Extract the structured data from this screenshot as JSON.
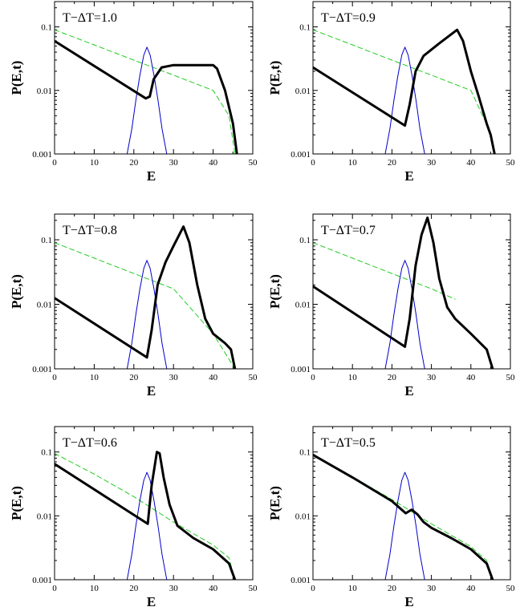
{
  "chart_data": [
    {
      "type": "line",
      "title": "T−ΔT=1.0",
      "xlabel": "E",
      "ylabel": "P(E,t)",
      "xlim": [
        0,
        50
      ],
      "ylim": [
        0.001,
        0.25
      ],
      "yscale": "log",
      "xticks": [
        "0",
        "10",
        "20",
        "30",
        "40",
        "50"
      ],
      "yticks": [
        "0.001",
        "0.01",
        "0.1"
      ],
      "series": [
        {
          "role": "bold-black",
          "color": "#000000",
          "x": [
            0,
            23,
            24,
            25,
            27,
            30,
            40,
            41,
            43,
            45,
            46
          ],
          "y": [
            0.06,
            0.0075,
            0.008,
            0.015,
            0.023,
            0.025,
            0.025,
            0.022,
            0.01,
            0.003,
            0.001
          ]
        },
        {
          "role": "blue-gaussian",
          "color": "#0000cc",
          "x": [
            18.3,
            19.5,
            20.5,
            21.5,
            22.5,
            23.3,
            24.1,
            25.1,
            26.1,
            27.1,
            28.3
          ],
          "y": [
            0.001,
            0.0025,
            0.007,
            0.017,
            0.036,
            0.048,
            0.036,
            0.017,
            0.007,
            0.0025,
            0.001
          ]
        },
        {
          "role": "green-dashed",
          "color": "#22cc22",
          "dashed": true,
          "x": [
            0,
            10,
            20,
            30,
            40,
            44,
            45.5
          ],
          "y": [
            0.09,
            0.052,
            0.03,
            0.0174,
            0.01,
            0.004,
            0.001
          ]
        }
      ]
    },
    {
      "type": "line",
      "title": "T−ΔT=0.9",
      "xlabel": "E",
      "ylabel": "P(E,t)",
      "xlim": [
        0,
        50
      ],
      "ylim": [
        0.001,
        0.25
      ],
      "yscale": "log",
      "xticks": [
        "0",
        "10",
        "20",
        "30",
        "40",
        "50"
      ],
      "yticks": [
        "0.001",
        "0.01",
        "0.1"
      ],
      "series": [
        {
          "role": "bold-black",
          "color": "#000000",
          "x": [
            0,
            23.3,
            24.5,
            26,
            28,
            32,
            36.5,
            38,
            40,
            42,
            44,
            45,
            46
          ],
          "y": [
            0.023,
            0.0028,
            0.006,
            0.02,
            0.035,
            0.055,
            0.09,
            0.06,
            0.02,
            0.008,
            0.003,
            0.002,
            0.001
          ]
        },
        {
          "role": "blue-gaussian",
          "color": "#0000cc",
          "x": [
            18.3,
            19.5,
            20.5,
            21.5,
            22.5,
            23.3,
            24.1,
            25.1,
            26.1,
            27.1,
            28.3
          ],
          "y": [
            0.001,
            0.0025,
            0.007,
            0.017,
            0.036,
            0.048,
            0.036,
            0.017,
            0.007,
            0.0025,
            0.001
          ]
        },
        {
          "role": "green-dashed",
          "color": "#22cc22",
          "dashed": true,
          "x": [
            0,
            10,
            20,
            30,
            40,
            44.5
          ],
          "y": [
            0.09,
            0.052,
            0.03,
            0.0174,
            0.01,
            0.0025
          ]
        }
      ]
    },
    {
      "type": "line",
      "title": "T−ΔT=0.8",
      "xlabel": "E",
      "ylabel": "P(E,t)",
      "xlim": [
        0,
        50
      ],
      "ylim": [
        0.001,
        0.25
      ],
      "yscale": "log",
      "xticks": [
        "0",
        "10",
        "20",
        "30",
        "40",
        "50"
      ],
      "yticks": [
        "0.001",
        "0.01",
        "0.1"
      ],
      "series": [
        {
          "role": "bold-black",
          "color": "#000000",
          "x": [
            0,
            23.3,
            24.5,
            26,
            28,
            30,
            32.5,
            34,
            36,
            38,
            40,
            43,
            44.5,
            45.5
          ],
          "y": [
            0.0125,
            0.0015,
            0.004,
            0.02,
            0.045,
            0.08,
            0.16,
            0.09,
            0.02,
            0.006,
            0.0035,
            0.0025,
            0.002,
            0.001
          ]
        },
        {
          "role": "blue-gaussian",
          "color": "#0000cc",
          "x": [
            18.3,
            19.5,
            20.5,
            21.5,
            22.5,
            23.3,
            24.1,
            25.1,
            26.1,
            27.1,
            28.3
          ],
          "y": [
            0.001,
            0.0025,
            0.007,
            0.017,
            0.036,
            0.048,
            0.036,
            0.017,
            0.007,
            0.0025,
            0.001
          ]
        },
        {
          "role": "green-dashed",
          "color": "#22cc22",
          "dashed": true,
          "x": [
            0,
            10,
            20,
            30,
            40,
            45.5
          ],
          "y": [
            0.09,
            0.052,
            0.03,
            0.0174,
            0.0035,
            0.001
          ]
        }
      ]
    },
    {
      "type": "line",
      "title": "T−ΔT=0.7",
      "xlabel": "E",
      "ylabel": "P(E,t)",
      "xlim": [
        0,
        50
      ],
      "ylim": [
        0.001,
        0.25
      ],
      "yscale": "log",
      "xticks": [
        "0",
        "10",
        "20",
        "30",
        "40",
        "50"
      ],
      "yticks": [
        "0.001",
        "0.01",
        "0.1"
      ],
      "series": [
        {
          "role": "bold-black",
          "color": "#000000",
          "x": [
            0,
            23.3,
            24.5,
            26,
            27.5,
            29,
            30.5,
            32,
            34,
            36,
            40,
            44,
            45.5
          ],
          "y": [
            0.019,
            0.0022,
            0.006,
            0.04,
            0.12,
            0.22,
            0.09,
            0.025,
            0.009,
            0.006,
            0.0035,
            0.002,
            0.001
          ]
        },
        {
          "role": "blue-gaussian",
          "color": "#0000cc",
          "x": [
            18.3,
            19.5,
            20.5,
            21.5,
            22.5,
            23.3,
            24.1,
            25.1,
            26.1,
            27.1,
            28.3
          ],
          "y": [
            0.001,
            0.0025,
            0.007,
            0.017,
            0.036,
            0.048,
            0.036,
            0.017,
            0.007,
            0.0025,
            0.001
          ]
        },
        {
          "role": "green-dashed",
          "color": "#22cc22",
          "dashed": true,
          "x": [
            0,
            10,
            20,
            30,
            36
          ],
          "y": [
            0.09,
            0.052,
            0.03,
            0.0174,
            0.012
          ]
        }
      ]
    },
    {
      "type": "line",
      "title": "T−ΔT=0.6",
      "xlabel": "E",
      "ylabel": "P(E,t)",
      "xlim": [
        0,
        50
      ],
      "ylim": [
        0.001,
        0.25
      ],
      "yscale": "log",
      "xticks": [
        "0",
        "10",
        "20",
        "30",
        "40",
        "50"
      ],
      "yticks": [
        "0.001",
        "0.01",
        "0.1"
      ],
      "series": [
        {
          "role": "bold-black",
          "color": "#000000",
          "x": [
            0,
            23.5,
            24.5,
            25.8,
            26.5,
            27.5,
            29,
            31,
            35,
            40,
            44,
            45.5
          ],
          "y": [
            0.065,
            0.0075,
            0.03,
            0.1,
            0.095,
            0.04,
            0.015,
            0.007,
            0.0045,
            0.003,
            0.0018,
            0.001
          ]
        },
        {
          "role": "blue-gaussian",
          "color": "#0000cc",
          "x": [
            18.3,
            19.5,
            20.5,
            21.5,
            22.5,
            23.3,
            24.1,
            25.1,
            26.1,
            27.1,
            28.3
          ],
          "y": [
            0.001,
            0.0025,
            0.007,
            0.017,
            0.036,
            0.048,
            0.036,
            0.017,
            0.007,
            0.0025,
            0.001
          ]
        },
        {
          "role": "green-dashed",
          "color": "#22cc22",
          "dashed": true,
          "x": [
            0,
            10,
            20,
            30,
            40,
            44,
            45.5
          ],
          "y": [
            0.095,
            0.045,
            0.02,
            0.008,
            0.0035,
            0.0022,
            0.001
          ]
        }
      ]
    },
    {
      "type": "line",
      "title": "T−ΔT=0.5",
      "xlabel": "E",
      "ylabel": "P(E,t)",
      "xlim": [
        0,
        50
      ],
      "ylim": [
        0.001,
        0.25
      ],
      "yscale": "log",
      "xticks": [
        "0",
        "10",
        "20",
        "30",
        "40",
        "50"
      ],
      "yticks": [
        "0.001",
        "0.01",
        "0.1"
      ],
      "series": [
        {
          "role": "bold-black",
          "color": "#000000",
          "x": [
            0,
            10,
            20,
            23.5,
            25,
            26.5,
            28,
            30,
            35,
            40,
            44,
            45.5
          ],
          "y": [
            0.09,
            0.04,
            0.017,
            0.011,
            0.0125,
            0.0105,
            0.008,
            0.0065,
            0.0045,
            0.003,
            0.0018,
            0.001
          ]
        },
        {
          "role": "blue-gaussian",
          "color": "#0000cc",
          "x": [
            18.3,
            19.5,
            20.5,
            21.5,
            22.5,
            23.3,
            24.1,
            25.1,
            26.1,
            27.1,
            28.3
          ],
          "y": [
            0.001,
            0.0025,
            0.007,
            0.017,
            0.036,
            0.048,
            0.036,
            0.017,
            0.007,
            0.0025,
            0.001
          ]
        },
        {
          "role": "green-dashed",
          "color": "#22cc22",
          "dashed": true,
          "x": [
            0,
            10,
            20,
            30,
            40,
            44,
            45.5
          ],
          "y": [
            0.092,
            0.041,
            0.018,
            0.0075,
            0.0033,
            0.002,
            0.001
          ]
        }
      ]
    }
  ]
}
